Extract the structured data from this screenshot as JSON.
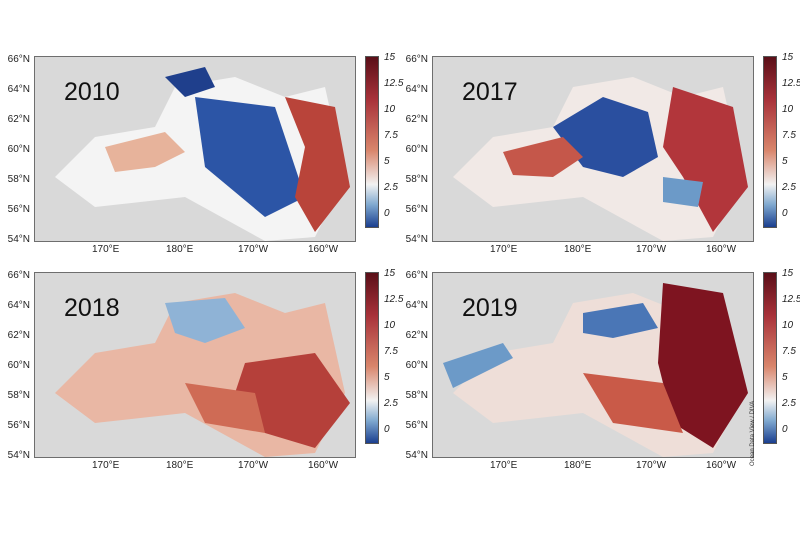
{
  "panels": [
    {
      "year": "2010",
      "colorbar": {
        "min": -1,
        "max": 15
      }
    },
    {
      "year": "2017",
      "colorbar": {
        "min": -1,
        "max": 15
      }
    },
    {
      "year": "2018",
      "colorbar": {
        "min": -1,
        "max": 15
      }
    },
    {
      "year": "2019",
      "colorbar": {
        "min": -1,
        "max": 15
      }
    }
  ],
  "latitude_labels": [
    "66°N",
    "64°N",
    "62°N",
    "60°N",
    "58°N",
    "56°N",
    "54°N"
  ],
  "longitude_labels": [
    "170°E",
    "180°E",
    "170°W",
    "160°W"
  ],
  "colorbar_ticks": [
    "15",
    "12.5",
    "10",
    "7.5",
    "5",
    "2.5",
    "0"
  ],
  "colorscale": {
    "cold": "#1b3f8f",
    "cool": "#7fa8cf",
    "neutral": "#f2f2f2",
    "warm": "#d98b6a",
    "hot": "#8a1520",
    "land": "#d9d9d9"
  },
  "credit": "Ocean Data View / DIVA"
}
